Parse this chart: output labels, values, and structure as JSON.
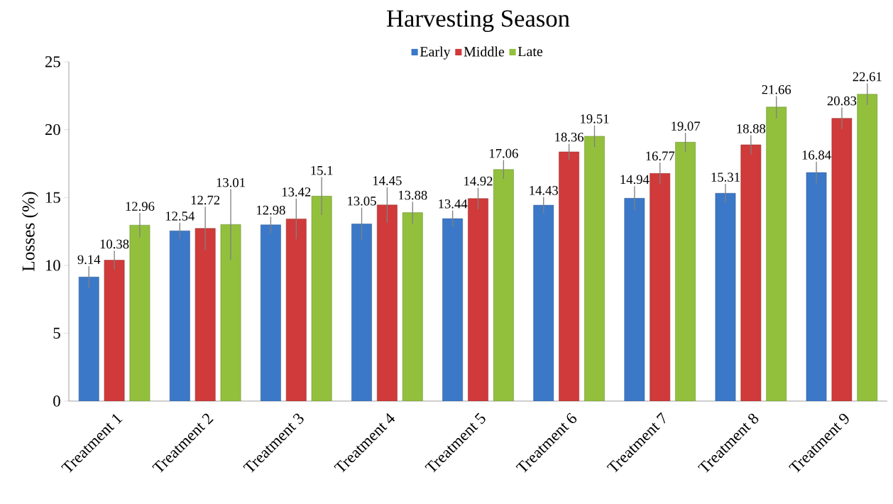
{
  "chart_data": {
    "type": "bar",
    "title": "Harvesting Season",
    "ylabel": "Losses (%)",
    "categories": [
      "Treatment 1",
      "Treatment 2",
      "Treatment 3",
      "Treatment 4",
      "Treatment 5",
      "Treatment 6",
      "Treatment 7",
      "Treatment 8",
      "Treatment 9"
    ],
    "series": [
      {
        "name": "Early",
        "color": "#3b78c8",
        "values": [
          9.14,
          12.54,
          12.98,
          13.05,
          13.44,
          14.43,
          14.94,
          15.31,
          16.84
        ],
        "errors": [
          0.8,
          0.6,
          0.6,
          1.2,
          0.6,
          0.6,
          0.9,
          0.7,
          0.8
        ]
      },
      {
        "name": "Middle",
        "color": "#d03a3a",
        "values": [
          10.38,
          12.72,
          13.42,
          14.45,
          14.92,
          18.36,
          16.77,
          18.88,
          20.83
        ],
        "errors": [
          0.7,
          1.6,
          1.5,
          1.3,
          0.8,
          0.6,
          0.8,
          0.7,
          0.8
        ]
      },
      {
        "name": "Late",
        "color": "#92c03c",
        "values": [
          12.96,
          13.01,
          15.1,
          13.88,
          17.06,
          19.51,
          19.07,
          21.66,
          22.61
        ],
        "errors": [
          0.9,
          2.6,
          1.4,
          0.8,
          0.7,
          0.8,
          0.7,
          0.8,
          0.8
        ]
      }
    ],
    "ylim": [
      0,
      25
    ],
    "yticks": [
      0,
      5,
      10,
      15,
      20,
      25
    ],
    "data_labels": true,
    "grid": false,
    "legend": "top"
  }
}
